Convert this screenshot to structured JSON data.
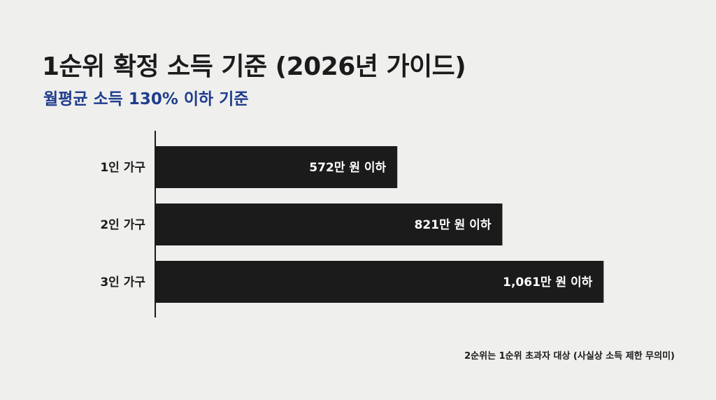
{
  "title": "1순위 확정 소득 기준 (2026년 가이드)",
  "subtitle": "월평균 소득 130% 이하 기준",
  "footnote": "2순위는 1순위 초과자 대상 (사실상 소득 제한 무의미)",
  "colors": {
    "background": "#efefee",
    "bar": "#1b1b1b",
    "bar_label": "#ffffff",
    "subtitle": "#1f3d8c",
    "text": "#1b1b1b"
  },
  "chart_data": {
    "type": "bar",
    "orientation": "horizontal",
    "categories": [
      "1인 가구",
      "2인 가구",
      "3인 가구"
    ],
    "values": [
      572,
      821,
      1061
    ],
    "value_labels": [
      "572만 원 이하",
      "821만 원 이하",
      "1,061만 원 이하"
    ],
    "unit": "만 원",
    "xlim": [
      0,
      1200
    ],
    "grid": false
  }
}
